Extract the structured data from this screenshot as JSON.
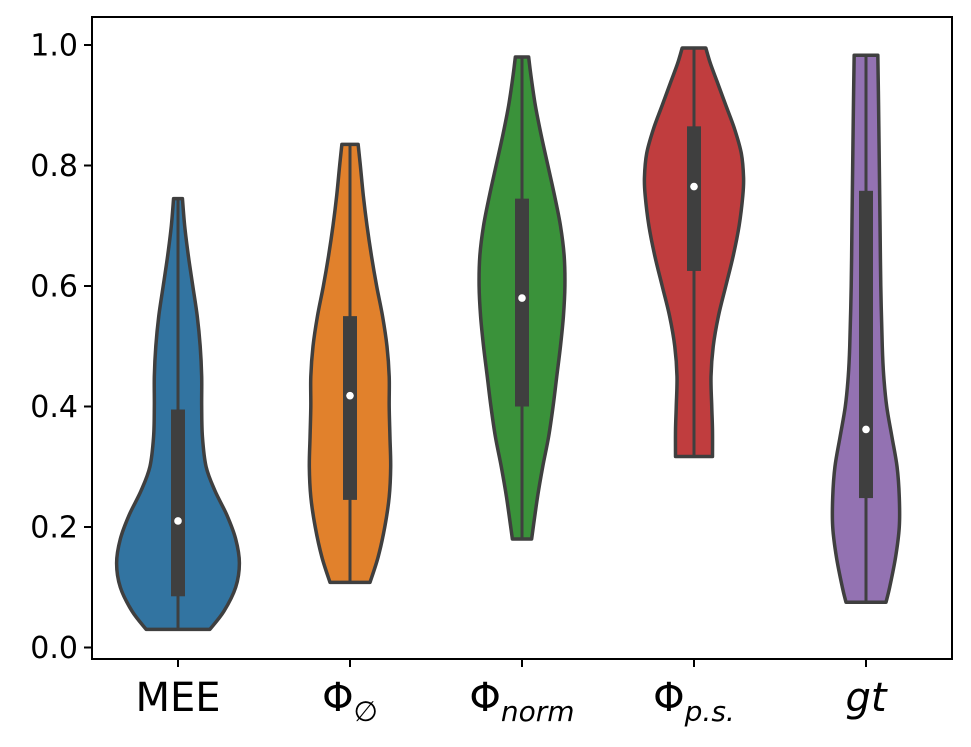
{
  "chart_data": {
    "type": "violin",
    "title": "",
    "xlabel": "",
    "ylabel": "",
    "ylim": [
      -0.02,
      1.05
    ],
    "yticks": [
      "0.0",
      "0.2",
      "0.4",
      "0.6",
      "0.8",
      "1.0"
    ],
    "grid": false,
    "legend": "none",
    "categories": [
      {
        "id": "mee",
        "base": "MEE",
        "sub": "",
        "italic": false
      },
      {
        "id": "phi-empty",
        "base": "Φ",
        "sub": "∅",
        "italic": false
      },
      {
        "id": "phi-norm",
        "base": "Φ",
        "sub": "norm",
        "italic": false
      },
      {
        "id": "phi-ps",
        "base": "Φ",
        "sub": "p.s.",
        "italic": false
      },
      {
        "id": "gt",
        "base": "gt",
        "sub": "",
        "italic": true
      }
    ],
    "series": [
      {
        "color": "#3274a1",
        "min": 0.03,
        "q1": 0.085,
        "median": 0.21,
        "q3": 0.395,
        "max": 0.745,
        "profile": [
          [
            0.03,
            0.43
          ],
          [
            0.06,
            0.62
          ],
          [
            0.1,
            0.78
          ],
          [
            0.14,
            0.83
          ],
          [
            0.18,
            0.78
          ],
          [
            0.22,
            0.66
          ],
          [
            0.26,
            0.5
          ],
          [
            0.3,
            0.38
          ],
          [
            0.35,
            0.33
          ],
          [
            0.4,
            0.32
          ],
          [
            0.45,
            0.32
          ],
          [
            0.5,
            0.3
          ],
          [
            0.55,
            0.26
          ],
          [
            0.6,
            0.2
          ],
          [
            0.65,
            0.14
          ],
          [
            0.7,
            0.09
          ],
          [
            0.745,
            0.06
          ]
        ]
      },
      {
        "color": "#e1812c",
        "min": 0.108,
        "q1": 0.245,
        "median": 0.418,
        "q3": 0.55,
        "max": 0.835,
        "profile": [
          [
            0.108,
            0.27
          ],
          [
            0.15,
            0.38
          ],
          [
            0.2,
            0.47
          ],
          [
            0.25,
            0.53
          ],
          [
            0.3,
            0.55
          ],
          [
            0.35,
            0.54
          ],
          [
            0.4,
            0.53
          ],
          [
            0.45,
            0.53
          ],
          [
            0.5,
            0.5
          ],
          [
            0.55,
            0.44
          ],
          [
            0.6,
            0.36
          ],
          [
            0.65,
            0.29
          ],
          [
            0.7,
            0.23
          ],
          [
            0.75,
            0.18
          ],
          [
            0.8,
            0.14
          ],
          [
            0.835,
            0.11
          ]
        ]
      },
      {
        "color": "#3a923a",
        "min": 0.18,
        "q1": 0.4,
        "median": 0.58,
        "q3": 0.745,
        "max": 0.98,
        "profile": [
          [
            0.18,
            0.13
          ],
          [
            0.25,
            0.21
          ],
          [
            0.3,
            0.28
          ],
          [
            0.35,
            0.36
          ],
          [
            0.4,
            0.42
          ],
          [
            0.45,
            0.47
          ],
          [
            0.5,
            0.52
          ],
          [
            0.55,
            0.56
          ],
          [
            0.6,
            0.58
          ],
          [
            0.65,
            0.57
          ],
          [
            0.7,
            0.52
          ],
          [
            0.75,
            0.44
          ],
          [
            0.8,
            0.35
          ],
          [
            0.85,
            0.26
          ],
          [
            0.9,
            0.18
          ],
          [
            0.95,
            0.12
          ],
          [
            0.98,
            0.09
          ]
        ]
      },
      {
        "color": "#c03d3e",
        "min": 0.317,
        "q1": 0.625,
        "median": 0.765,
        "q3": 0.865,
        "max": 0.995,
        "profile": [
          [
            0.317,
            0.25
          ],
          [
            0.36,
            0.25
          ],
          [
            0.4,
            0.24
          ],
          [
            0.45,
            0.23
          ],
          [
            0.5,
            0.26
          ],
          [
            0.55,
            0.33
          ],
          [
            0.6,
            0.43
          ],
          [
            0.65,
            0.53
          ],
          [
            0.7,
            0.61
          ],
          [
            0.75,
            0.66
          ],
          [
            0.78,
            0.67
          ],
          [
            0.82,
            0.64
          ],
          [
            0.86,
            0.55
          ],
          [
            0.9,
            0.43
          ],
          [
            0.94,
            0.31
          ],
          [
            0.97,
            0.22
          ],
          [
            0.995,
            0.16
          ]
        ]
      },
      {
        "color": "#9372b2",
        "min": 0.075,
        "q1": 0.248,
        "median": 0.362,
        "q3": 0.758,
        "max": 0.983,
        "profile": [
          [
            0.075,
            0.27
          ],
          [
            0.1,
            0.32
          ],
          [
            0.15,
            0.4
          ],
          [
            0.2,
            0.45
          ],
          [
            0.25,
            0.45
          ],
          [
            0.3,
            0.42
          ],
          [
            0.35,
            0.35
          ],
          [
            0.4,
            0.28
          ],
          [
            0.45,
            0.24
          ],
          [
            0.5,
            0.22
          ],
          [
            0.6,
            0.2
          ],
          [
            0.7,
            0.19
          ],
          [
            0.8,
            0.18
          ],
          [
            0.9,
            0.17
          ],
          [
            0.983,
            0.16
          ]
        ]
      }
    ]
  }
}
